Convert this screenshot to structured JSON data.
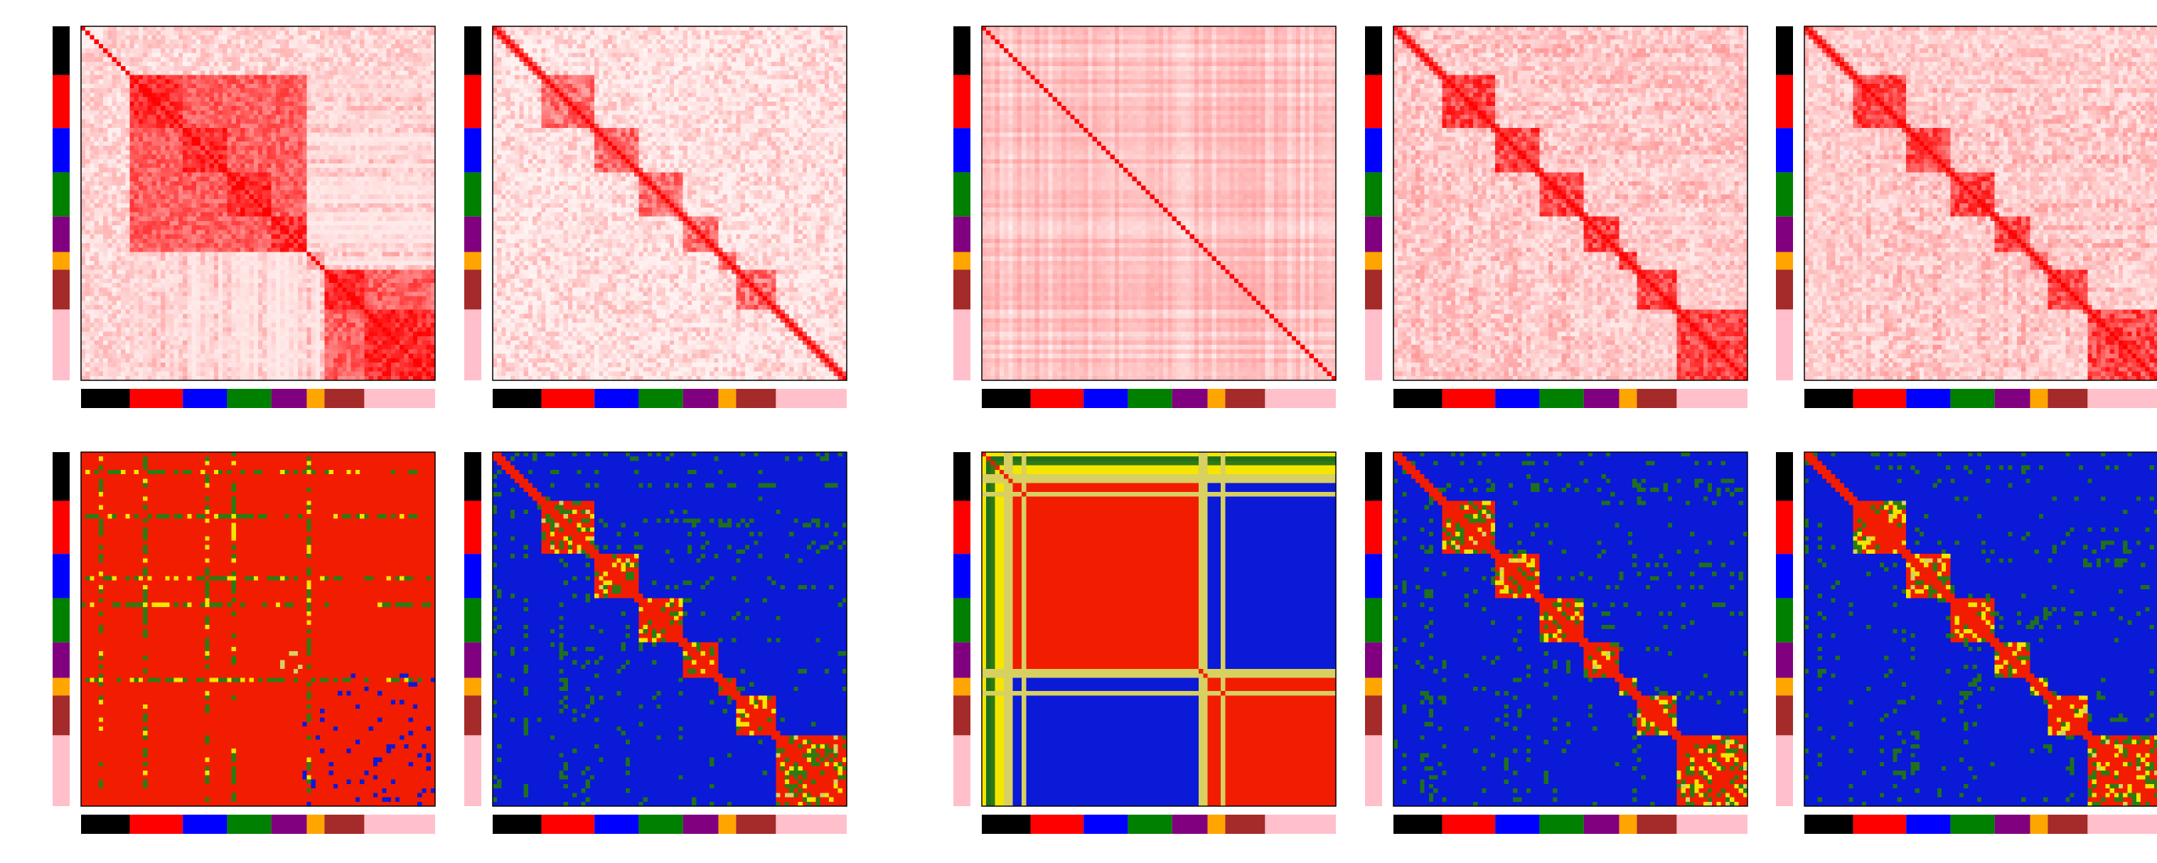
{
  "figure": {
    "layout": {
      "rows": 2,
      "columns": 5,
      "column_gap_after_index": 1
    },
    "group_sequence": [
      "black",
      "red",
      "blue",
      "green",
      "purple",
      "orange",
      "brown",
      "pink"
    ],
    "group_colors": {
      "black": "#000000",
      "red": "#ff0000",
      "blue": "#0000ff",
      "green": "#008000",
      "purple": "#800080",
      "orange": "#ffa500",
      "brown": "#a52a2a",
      "pink": "#ffc0cb"
    },
    "group_fractions": [
      0.139,
      0.147,
      0.121,
      0.13,
      0.103,
      0.045,
      0.113,
      0.202
    ]
  },
  "chart_data": [
    {
      "type": "heatmap",
      "colormap": "white-red",
      "row": 1,
      "col": 1,
      "pattern": "blocks-coarse",
      "size": 80,
      "groups": [
        "black",
        "red",
        "blue",
        "green",
        "purple",
        "orange",
        "brown",
        "pink"
      ]
    },
    {
      "type": "heatmap",
      "colormap": "white-red",
      "row": 1,
      "col": 2,
      "pattern": "blocks-sparse",
      "size": 80,
      "groups": [
        "black",
        "red",
        "blue",
        "green",
        "purple",
        "orange",
        "brown",
        "pink"
      ]
    },
    {
      "type": "heatmap",
      "colormap": "white-red",
      "row": 1,
      "col": 3,
      "pattern": "stripes-uniform",
      "size": 80,
      "groups": [
        "black",
        "red",
        "blue",
        "green",
        "purple",
        "orange",
        "brown",
        "pink"
      ]
    },
    {
      "type": "heatmap",
      "colormap": "white-red",
      "row": 1,
      "col": 4,
      "pattern": "blocks-diagonal",
      "size": 80,
      "groups": [
        "black",
        "red",
        "blue",
        "green",
        "purple",
        "orange",
        "brown",
        "pink"
      ]
    },
    {
      "type": "heatmap",
      "colormap": "white-red",
      "row": 1,
      "col": 5,
      "pattern": "blocks-diagonal",
      "size": 80,
      "groups": [
        "black",
        "red",
        "blue",
        "green",
        "purple",
        "orange",
        "brown",
        "pink"
      ]
    },
    {
      "type": "heatmap",
      "colormap": "blue-green-yellow-red",
      "row": 2,
      "col": 1,
      "pattern": "mostly-high",
      "size": 80,
      "groups": [
        "black",
        "red",
        "blue",
        "green",
        "purple",
        "orange",
        "brown",
        "pink"
      ]
    },
    {
      "type": "heatmap",
      "colormap": "blue-green-yellow-red",
      "row": 2,
      "col": 2,
      "pattern": "blocks-diagonal",
      "size": 80,
      "groups": [
        "black",
        "red",
        "blue",
        "green",
        "purple",
        "orange",
        "brown",
        "pink"
      ]
    },
    {
      "type": "heatmap",
      "colormap": "blue-green-yellow-red",
      "row": 2,
      "col": 3,
      "pattern": "two-blocks",
      "size": 80,
      "groups": [
        "black",
        "red",
        "blue",
        "green",
        "purple",
        "orange",
        "brown",
        "pink"
      ]
    },
    {
      "type": "heatmap",
      "colormap": "blue-green-yellow-red",
      "row": 2,
      "col": 4,
      "pattern": "blocks-diagonal",
      "size": 80,
      "groups": [
        "black",
        "red",
        "blue",
        "green",
        "purple",
        "orange",
        "brown",
        "pink"
      ]
    },
    {
      "type": "heatmap",
      "colormap": "blue-green-yellow-red",
      "row": 2,
      "col": 5,
      "pattern": "blocks-diagonal",
      "size": 80,
      "groups": [
        "black",
        "red",
        "blue",
        "green",
        "purple",
        "orange",
        "brown",
        "pink"
      ]
    }
  ]
}
